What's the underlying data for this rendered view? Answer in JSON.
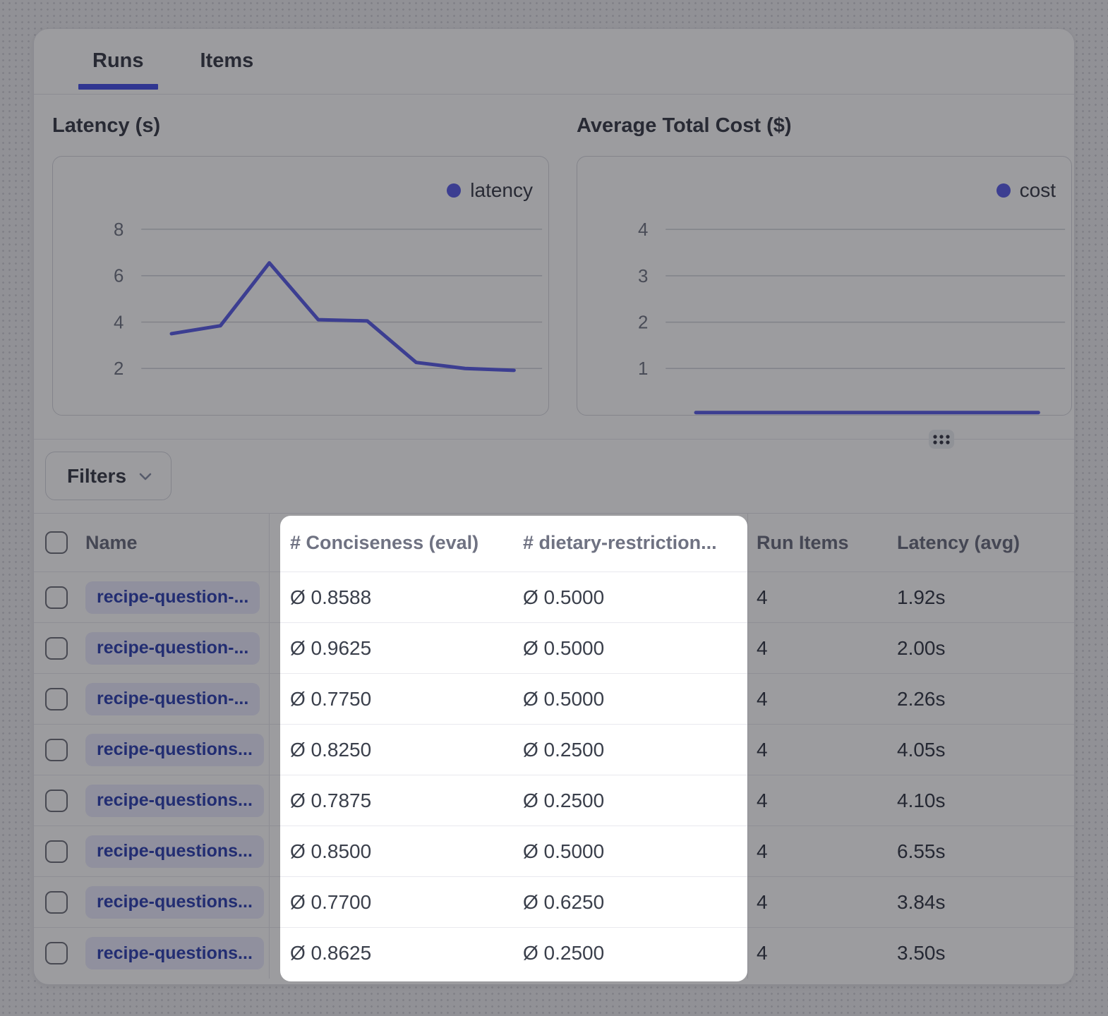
{
  "tabs": {
    "runs": "Runs",
    "items": "Items"
  },
  "filters": {
    "label": "Filters"
  },
  "chart_data": [
    {
      "type": "line",
      "title": "Latency (s)",
      "legend": "latency",
      "legend_position": "top-right",
      "grid": true,
      "yticks": [
        8,
        6,
        4,
        2
      ],
      "ylim": [
        0,
        11.13
      ],
      "x_tick_labels": [],
      "line_color": "#5f63e8",
      "series": [
        {
          "name": "latency",
          "values": [
            3.5,
            3.84,
            6.55,
            4.1,
            4.05,
            2.26,
            2.0,
            1.92
          ]
        }
      ]
    },
    {
      "type": "line",
      "title": "Average Total Cost ($)",
      "legend": "cost",
      "legend_position": "top-right",
      "grid": true,
      "yticks": [
        4,
        3,
        2,
        1
      ],
      "ylim": [
        0,
        5.57
      ],
      "x_tick_labels": [],
      "line_color": "#5f63e8",
      "values_approximate": true,
      "series": [
        {
          "name": "cost",
          "values": [
            0.05,
            0.05,
            0.05,
            0.05,
            0.05,
            0.05,
            0.05,
            0.05
          ]
        }
      ]
    }
  ],
  "table": {
    "select_all_checked": false,
    "columns": [
      {
        "label": "Name"
      },
      {
        "label": "# Conciseness (eval)"
      },
      {
        "label": "# dietary-restriction..."
      },
      {
        "label": "Run Items"
      },
      {
        "label": "Latency (avg)"
      }
    ],
    "rows": [
      {
        "name": "recipe-question-...",
        "conciseness": "Ø 0.8588",
        "dietary": "Ø 0.5000",
        "run_items": "4",
        "latency": "1.92s",
        "checked": false
      },
      {
        "name": "recipe-question-...",
        "conciseness": "Ø 0.9625",
        "dietary": "Ø 0.5000",
        "run_items": "4",
        "latency": "2.00s",
        "checked": false
      },
      {
        "name": "recipe-question-...",
        "conciseness": "Ø 0.7750",
        "dietary": "Ø 0.5000",
        "run_items": "4",
        "latency": "2.26s",
        "checked": false
      },
      {
        "name": "recipe-questions...",
        "conciseness": "Ø 0.8250",
        "dietary": "Ø 0.2500",
        "run_items": "4",
        "latency": "4.05s",
        "checked": false
      },
      {
        "name": "recipe-questions...",
        "conciseness": "Ø 0.7875",
        "dietary": "Ø 0.2500",
        "run_items": "4",
        "latency": "4.10s",
        "checked": false
      },
      {
        "name": "recipe-questions...",
        "conciseness": "Ø 0.8500",
        "dietary": "Ø 0.5000",
        "run_items": "4",
        "latency": "6.55s",
        "checked": false
      },
      {
        "name": "recipe-questions...",
        "conciseness": "Ø 0.7700",
        "dietary": "Ø 0.6250",
        "run_items": "4",
        "latency": "3.84s",
        "checked": false
      },
      {
        "name": "recipe-questions...",
        "conciseness": "Ø 0.8625",
        "dietary": "Ø 0.2500",
        "run_items": "4",
        "latency": "3.50s",
        "checked": false
      }
    ]
  },
  "colors": {
    "accent_tab_underline": "#4c55e8",
    "chart_line": "#5f63e8",
    "badge_bg": "#ebecfe",
    "badge_text": "#3447b4",
    "dim_overlay": "rgba(7,8,16,0.40)"
  }
}
